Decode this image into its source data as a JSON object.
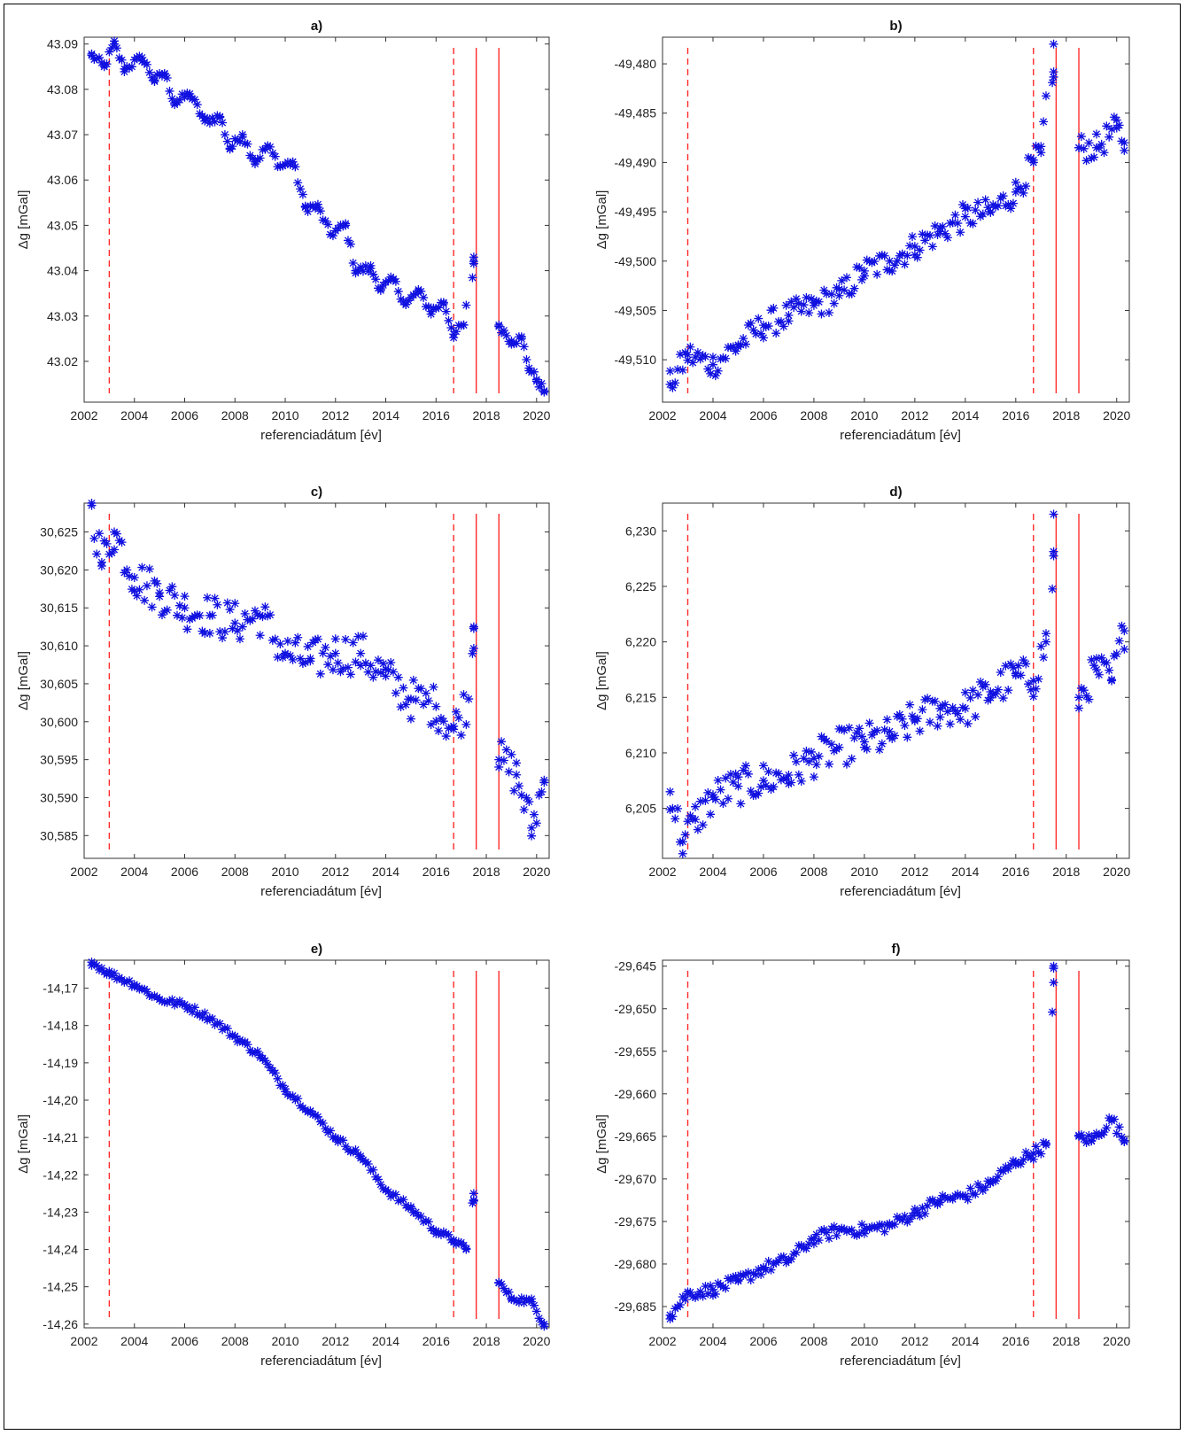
{
  "chart_data": [
    {
      "panel": "a)",
      "type": "scatter",
      "title": "a)",
      "xlabel": "referenciadátum  [év]",
      "ylabel": "Δg [mGal]",
      "xlim": [
        2002,
        2020.5
      ],
      "ylim": [
        43.011,
        43.0915
      ],
      "xticks": [
        2002,
        2004,
        2006,
        2008,
        2010,
        2012,
        2014,
        2016,
        2018,
        2020
      ],
      "yticks": [
        43.02,
        43.03,
        43.04,
        43.05,
        43.06,
        43.07,
        43.08,
        43.09
      ],
      "ytick_labels": [
        "43.02",
        "43.03",
        "43.04",
        "43.05",
        "43.06",
        "43.07",
        "43.08",
        "43.09"
      ],
      "vlines": [
        {
          "x": 2003.0,
          "style": "dashed"
        },
        {
          "x": 2016.7,
          "style": "dashed"
        },
        {
          "x": 2017.6,
          "style": "solid"
        },
        {
          "x": 2018.5,
          "style": "solid"
        }
      ],
      "marker_color": "#1010e0",
      "line_color": "#ff2a2a",
      "anchors": [
        [
          2002.3,
          43.0875
        ],
        [
          2002.8,
          43.085
        ],
        [
          2003.2,
          43.09
        ],
        [
          2003.6,
          43.0845
        ],
        [
          2004.3,
          43.087
        ],
        [
          2004.8,
          43.082
        ],
        [
          2005.2,
          43.0835
        ],
        [
          2005.6,
          43.077
        ],
        [
          2006.2,
          43.079
        ],
        [
          2006.8,
          43.073
        ],
        [
          2007.4,
          43.074
        ],
        [
          2007.8,
          43.067
        ],
        [
          2008.3,
          43.07
        ],
        [
          2008.8,
          43.064
        ],
        [
          2009.3,
          43.0675
        ],
        [
          2009.8,
          43.063
        ],
        [
          2010.3,
          43.064
        ],
        [
          2010.8,
          43.054
        ],
        [
          2011.3,
          43.054
        ],
        [
          2011.8,
          43.048
        ],
        [
          2012.4,
          43.05
        ],
        [
          2012.8,
          43.04
        ],
        [
          2013.4,
          43.0405
        ],
        [
          2013.8,
          43.036
        ],
        [
          2014.3,
          43.038
        ],
        [
          2014.8,
          43.0325
        ],
        [
          2015.3,
          43.0355
        ],
        [
          2015.8,
          43.031
        ],
        [
          2016.3,
          43.033
        ],
        [
          2016.7,
          43.026
        ],
        [
          2017.1,
          43.028
        ],
        [
          2017.5,
          43.043
        ],
        [
          2018.5,
          43.028
        ],
        [
          2019.0,
          43.0245
        ],
        [
          2019.4,
          43.025
        ],
        [
          2019.7,
          43.0185
        ],
        [
          2020.0,
          43.016
        ],
        [
          2020.3,
          43.0135
        ]
      ],
      "noise": 0.001
    },
    {
      "panel": "b)",
      "type": "scatter",
      "title": "b)",
      "xlabel": "referenciadátum  [év]",
      "ylabel": "Δg [mGal]",
      "xlim": [
        2002,
        2020.5
      ],
      "ylim": [
        -49.5143,
        -49.4773
      ],
      "xticks": [
        2002,
        2004,
        2006,
        2008,
        2010,
        2012,
        2014,
        2016,
        2018,
        2020
      ],
      "yticks": [
        -49.51,
        -49.505,
        -49.5,
        -49.495,
        -49.49,
        -49.485,
        -49.48
      ],
      "ytick_labels": [
        "-49,510",
        "-49,505",
        "-49,500",
        "-49,495",
        "-49,490",
        "-49,485",
        "-49,480"
      ],
      "vlines": [
        {
          "x": 2003.0,
          "style": "dashed"
        },
        {
          "x": 2016.7,
          "style": "dashed"
        },
        {
          "x": 2017.6,
          "style": "solid"
        },
        {
          "x": 2018.5,
          "style": "solid"
        }
      ],
      "marker_color": "#1010e0",
      "line_color": "#ff2a2a",
      "anchors": [
        [
          2002.3,
          -49.5125
        ],
        [
          2003.0,
          -49.5095
        ],
        [
          2004.0,
          -49.5105
        ],
        [
          2005.0,
          -49.5085
        ],
        [
          2006.0,
          -49.5065
        ],
        [
          2007.0,
          -49.5055
        ],
        [
          2008.0,
          -49.5045
        ],
        [
          2009.0,
          -49.5035
        ],
        [
          2010.0,
          -49.501
        ],
        [
          2011.0,
          -49.5
        ],
        [
          2012.0,
          -49.4985
        ],
        [
          2013.0,
          -49.497
        ],
        [
          2014.0,
          -49.4955
        ],
        [
          2015.0,
          -49.495
        ],
        [
          2016.0,
          -49.493
        ],
        [
          2016.7,
          -49.49
        ],
        [
          2017.0,
          -49.489
        ],
        [
          2017.5,
          -49.478
        ],
        [
          2018.5,
          -49.4885
        ],
        [
          2019.2,
          -49.4885
        ],
        [
          2020.0,
          -49.4865
        ],
        [
          2020.3,
          -49.488
        ]
      ],
      "noise": 0.0014
    },
    {
      "panel": "c)",
      "type": "scatter",
      "title": "c)",
      "xlabel": "referenciadátum  [év]",
      "ylabel": "Δg [mGal]",
      "xlim": [
        2002,
        2020.5
      ],
      "ylim": [
        30.582,
        30.6288
      ],
      "xticks": [
        2002,
        2004,
        2006,
        2008,
        2010,
        2012,
        2014,
        2016,
        2018,
        2020
      ],
      "yticks": [
        30.585,
        30.59,
        30.595,
        30.6,
        30.605,
        30.61,
        30.615,
        30.62,
        30.625
      ],
      "ytick_labels": [
        "30,585",
        "30,590",
        "30,595",
        "30,600",
        "30,605",
        "30,610",
        "30,615",
        "30,620",
        "30,625"
      ],
      "vlines": [
        {
          "x": 2003.0,
          "style": "dashed"
        },
        {
          "x": 2016.7,
          "style": "dashed"
        },
        {
          "x": 2017.6,
          "style": "solid"
        },
        {
          "x": 2018.5,
          "style": "solid"
        }
      ],
      "marker_color": "#1010e0",
      "line_color": "#ff2a2a",
      "anchors": [
        [
          2002.3,
          30.6285
        ],
        [
          2002.7,
          30.621
        ],
        [
          2003.2,
          30.625
        ],
        [
          2004.0,
          30.619
        ],
        [
          2005.0,
          30.617
        ],
        [
          2006.0,
          30.615
        ],
        [
          2007.0,
          30.614
        ],
        [
          2008.0,
          30.613
        ],
        [
          2009.0,
          30.614
        ],
        [
          2010.0,
          30.609
        ],
        [
          2011.0,
          30.608
        ],
        [
          2012.0,
          30.609
        ],
        [
          2013.0,
          30.609
        ],
        [
          2014.0,
          30.606
        ],
        [
          2015.0,
          30.603
        ],
        [
          2016.0,
          30.602
        ],
        [
          2016.7,
          30.599
        ],
        [
          2017.3,
          30.603
        ],
        [
          2017.5,
          30.6125
        ],
        [
          2018.5,
          30.595
        ],
        [
          2019.2,
          30.593
        ],
        [
          2019.8,
          30.586
        ],
        [
          2020.3,
          30.592
        ]
      ],
      "noise": 0.0028
    },
    {
      "panel": "d)",
      "type": "scatter",
      "title": "d)",
      "xlabel": "referenciadátum  [év]",
      "ylabel": "Δg [mGal]",
      "xlim": [
        2002,
        2020.5
      ],
      "ylim": [
        6.2005,
        6.2325
      ],
      "xticks": [
        2002,
        2004,
        2006,
        2008,
        2010,
        2012,
        2014,
        2016,
        2018,
        2020
      ],
      "yticks": [
        6.205,
        6.21,
        6.215,
        6.22,
        6.225,
        6.23
      ],
      "ytick_labels": [
        "6,205",
        "6,210",
        "6,215",
        "6,220",
        "6,225",
        "6,230"
      ],
      "vlines": [
        {
          "x": 2003.0,
          "style": "dashed"
        },
        {
          "x": 2016.7,
          "style": "dashed"
        },
        {
          "x": 2017.6,
          "style": "solid"
        },
        {
          "x": 2018.5,
          "style": "solid"
        }
      ],
      "marker_color": "#1010e0",
      "line_color": "#ff2a2a",
      "anchors": [
        [
          2002.3,
          6.2065
        ],
        [
          2002.8,
          6.202
        ],
        [
          2003.3,
          6.204
        ],
        [
          2004.0,
          6.206
        ],
        [
          2005.0,
          6.207
        ],
        [
          2006.0,
          6.2075
        ],
        [
          2007.0,
          6.208
        ],
        [
          2008.0,
          6.2095
        ],
        [
          2009.0,
          6.2105
        ],
        [
          2010.0,
          6.211
        ],
        [
          2011.0,
          6.2115
        ],
        [
          2012.0,
          6.213
        ],
        [
          2013.0,
          6.214
        ],
        [
          2014.0,
          6.214
        ],
        [
          2015.0,
          6.2155
        ],
        [
          2016.0,
          6.217
        ],
        [
          2016.7,
          6.2165
        ],
        [
          2017.2,
          6.22
        ],
        [
          2017.5,
          6.2315
        ],
        [
          2018.5,
          6.215
        ],
        [
          2019.2,
          6.2175
        ],
        [
          2019.8,
          6.2165
        ],
        [
          2020.3,
          6.221
        ]
      ],
      "noise": 0.0017
    },
    {
      "panel": "e)",
      "type": "scatter",
      "title": "e)",
      "xlabel": "referenciadátum  [év]",
      "ylabel": "Δg [mGal]",
      "xlim": [
        2002,
        2020.5
      ],
      "ylim": [
        -14.261,
        -14.1625
      ],
      "xticks": [
        2002,
        2004,
        2006,
        2008,
        2010,
        2012,
        2014,
        2016,
        2018,
        2020
      ],
      "yticks": [
        -14.26,
        -14.25,
        -14.24,
        -14.23,
        -14.22,
        -14.21,
        -14.2,
        -14.19,
        -14.18,
        -14.17
      ],
      "ytick_labels": [
        "-14,26",
        "-14,25",
        "-14,24",
        "-14,23",
        "-14,22",
        "-14,21",
        "-14,20",
        "-14,19",
        "-14,18",
        "-14,17"
      ],
      "vlines": [
        {
          "x": 2003.0,
          "style": "dashed"
        },
        {
          "x": 2016.7,
          "style": "dashed"
        },
        {
          "x": 2017.6,
          "style": "solid"
        },
        {
          "x": 2018.5,
          "style": "solid"
        }
      ],
      "marker_color": "#1010e0",
      "line_color": "#ff2a2a",
      "anchors": [
        [
          2002.3,
          -14.163
        ],
        [
          2003.0,
          -14.166
        ],
        [
          2004.0,
          -14.169
        ],
        [
          2005.0,
          -14.173
        ],
        [
          2006.0,
          -14.1745
        ],
        [
          2007.0,
          -14.178
        ],
        [
          2008.0,
          -14.183
        ],
        [
          2009.0,
          -14.188
        ],
        [
          2010.0,
          -14.197
        ],
        [
          2011.0,
          -14.203
        ],
        [
          2012.0,
          -14.21
        ],
        [
          2013.0,
          -14.215
        ],
        [
          2014.0,
          -14.224
        ],
        [
          2015.0,
          -14.229
        ],
        [
          2016.0,
          -14.235
        ],
        [
          2016.7,
          -14.2375
        ],
        [
          2017.2,
          -14.24
        ],
        [
          2017.5,
          -14.225
        ],
        [
          2018.5,
          -14.249
        ],
        [
          2019.0,
          -14.253
        ],
        [
          2019.8,
          -14.254
        ],
        [
          2020.3,
          -14.26
        ]
      ],
      "noise": 0.0009
    },
    {
      "panel": "f)",
      "type": "scatter",
      "title": "f)",
      "xlabel": "referenciadátum  [év]",
      "ylabel": "Δg [mGal]",
      "xlim": [
        2002,
        2020.5
      ],
      "ylim": [
        -29.6875,
        -29.6443
      ],
      "xticks": [
        2002,
        2004,
        2006,
        2008,
        2010,
        2012,
        2014,
        2016,
        2018,
        2020
      ],
      "yticks": [
        -29.685,
        -29.68,
        -29.675,
        -29.67,
        -29.665,
        -29.66,
        -29.655,
        -29.65,
        -29.645
      ],
      "ytick_labels": [
        "-29,685",
        "-29,680",
        "-29,675",
        "-29,670",
        "-29,665",
        "-29,660",
        "-29,655",
        "-29,650",
        "-29,645"
      ],
      "vlines": [
        {
          "x": 2003.0,
          "style": "dashed"
        },
        {
          "x": 2016.7,
          "style": "dashed"
        },
        {
          "x": 2017.6,
          "style": "solid"
        },
        {
          "x": 2018.5,
          "style": "solid"
        }
      ],
      "marker_color": "#1010e0",
      "line_color": "#ff2a2a",
      "anchors": [
        [
          2002.3,
          -29.686
        ],
        [
          2003.0,
          -29.6835
        ],
        [
          2004.0,
          -29.683
        ],
        [
          2005.0,
          -29.682
        ],
        [
          2006.0,
          -29.6805
        ],
        [
          2007.0,
          -29.6795
        ],
        [
          2008.0,
          -29.677
        ],
        [
          2009.0,
          -29.676
        ],
        [
          2010.0,
          -29.676
        ],
        [
          2011.0,
          -29.6755
        ],
        [
          2012.0,
          -29.674
        ],
        [
          2013.0,
          -29.6725
        ],
        [
          2014.0,
          -29.672
        ],
        [
          2015.0,
          -29.6705
        ],
        [
          2016.0,
          -29.668
        ],
        [
          2016.7,
          -29.667
        ],
        [
          2017.2,
          -29.666
        ],
        [
          2017.5,
          -29.645
        ],
        [
          2018.5,
          -29.665
        ],
        [
          2019.0,
          -29.6655
        ],
        [
          2019.8,
          -29.663
        ],
        [
          2020.3,
          -29.6655
        ]
      ],
      "noise": 0.0007
    }
  ]
}
